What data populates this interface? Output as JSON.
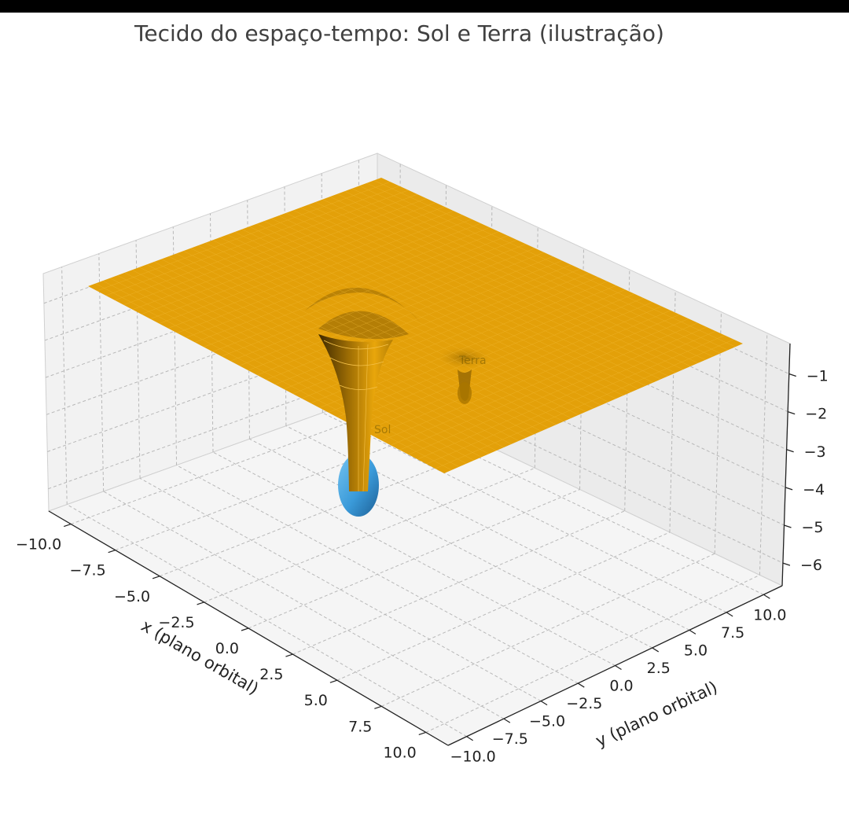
{
  "chart_data": {
    "type": "surface3d",
    "title": "Tecido do espaço-tempo: Sol e Terra (ilustração)",
    "xlabel": "x (plano orbital)",
    "ylabel": "y (plano orbital)",
    "zlabel": "",
    "xlim": [
      -10,
      10
    ],
    "ylim": [
      -10,
      10
    ],
    "zlim": [
      -6.6,
      -0.2
    ],
    "x_ticks": [
      "−10.0",
      "−7.5",
      "−5.0",
      "−2.5",
      "0.0",
      "2.5",
      "5.0",
      "7.5",
      "10.0"
    ],
    "y_ticks": [
      "−10.0",
      "−7.5",
      "−5.0",
      "−2.5",
      "0.0",
      "2.5",
      "5.0",
      "7.5",
      "10.0"
    ],
    "z_ticks": [
      "−1",
      "−2",
      "−3",
      "−4",
      "−5",
      "−6"
    ],
    "grid": true,
    "surface": {
      "color": "#e3a009",
      "function": "z = -0.5 * (sun_mass/r_sun + earth_mass/r_earth) (gravity-well illustration)",
      "rim_z": -0.3,
      "wells": [
        {
          "label": "Sol",
          "x": 0,
          "y": 0,
          "min_z": -6.6
        },
        {
          "label": "Terra",
          "x": 3,
          "y": 5,
          "min_z": -1.2
        }
      ]
    },
    "markers": [
      {
        "label": "Sol",
        "x": 0,
        "y": 0,
        "z": -6.5,
        "color": "#3a9ad9"
      },
      {
        "label": "Terra",
        "x": 3,
        "y": 5,
        "z": -1.2,
        "color": "#3a9ad9"
      }
    ],
    "annotations": [
      "Sol",
      "Terra"
    ]
  }
}
